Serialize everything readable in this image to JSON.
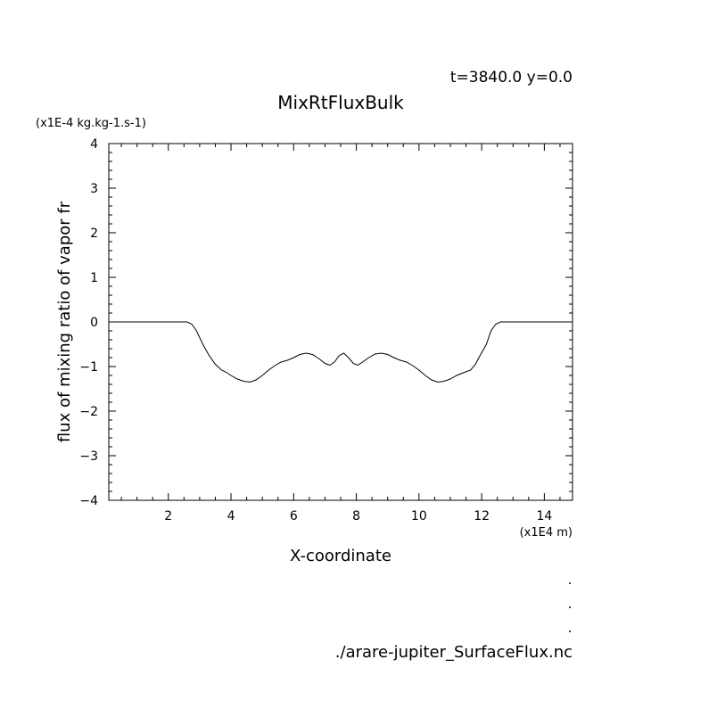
{
  "header": {
    "time_label": "t=3840.0 y=0.0",
    "source_file": "./arare-jupiter_SurfaceFlux.nc"
  },
  "chart_data": {
    "type": "line",
    "title": "MixRtFluxBulk",
    "xlabel": "X-coordinate",
    "ylabel": "flux of mixing ratio of vapor fr",
    "x_unit": "(x1E4 m)",
    "y_unit": "(x1E-4 kg.kg-1.s-1)",
    "xlim": [
      0.1,
      14.9
    ],
    "ylim": [
      -4,
      4
    ],
    "x_ticks": [
      2,
      4,
      6,
      8,
      10,
      12,
      14
    ],
    "y_ticks": [
      -4,
      -3,
      -2,
      -1,
      0,
      1,
      2,
      3,
      4
    ],
    "grid": false,
    "series": [
      {
        "x": [
          0.1,
          1.0,
          2.0,
          2.4,
          2.6,
          2.75,
          2.9,
          3.1,
          3.3,
          3.5,
          3.7,
          3.85,
          4.0,
          4.2,
          4.4,
          4.6,
          4.8,
          5.0,
          5.2,
          5.4,
          5.6,
          5.8,
          6.0,
          6.2,
          6.4,
          6.6,
          6.8,
          7.0,
          7.15,
          7.3,
          7.45,
          7.6,
          7.75,
          7.9,
          8.05,
          8.2,
          8.4,
          8.6,
          8.8,
          9.0,
          9.2,
          9.4,
          9.6,
          9.8,
          10.0,
          10.2,
          10.4,
          10.6,
          10.8,
          11.0,
          11.2,
          11.45,
          11.65,
          11.8,
          11.95,
          12.15,
          12.3,
          12.45,
          12.6,
          12.8,
          13.5,
          14.9
        ],
        "y": [
          0.0,
          0.0,
          0.0,
          0.0,
          0.0,
          -0.05,
          -0.2,
          -0.5,
          -0.75,
          -0.95,
          -1.08,
          -1.13,
          -1.2,
          -1.28,
          -1.33,
          -1.35,
          -1.3,
          -1.2,
          -1.08,
          -0.98,
          -0.9,
          -0.86,
          -0.8,
          -0.73,
          -0.7,
          -0.73,
          -0.82,
          -0.93,
          -0.97,
          -0.9,
          -0.76,
          -0.7,
          -0.8,
          -0.93,
          -0.97,
          -0.9,
          -0.8,
          -0.72,
          -0.7,
          -0.73,
          -0.8,
          -0.86,
          -0.9,
          -0.98,
          -1.08,
          -1.2,
          -1.3,
          -1.35,
          -1.33,
          -1.28,
          -1.2,
          -1.13,
          -1.08,
          -0.95,
          -0.75,
          -0.5,
          -0.2,
          -0.05,
          0.0,
          0.0,
          0.0,
          0.0
        ]
      }
    ]
  }
}
